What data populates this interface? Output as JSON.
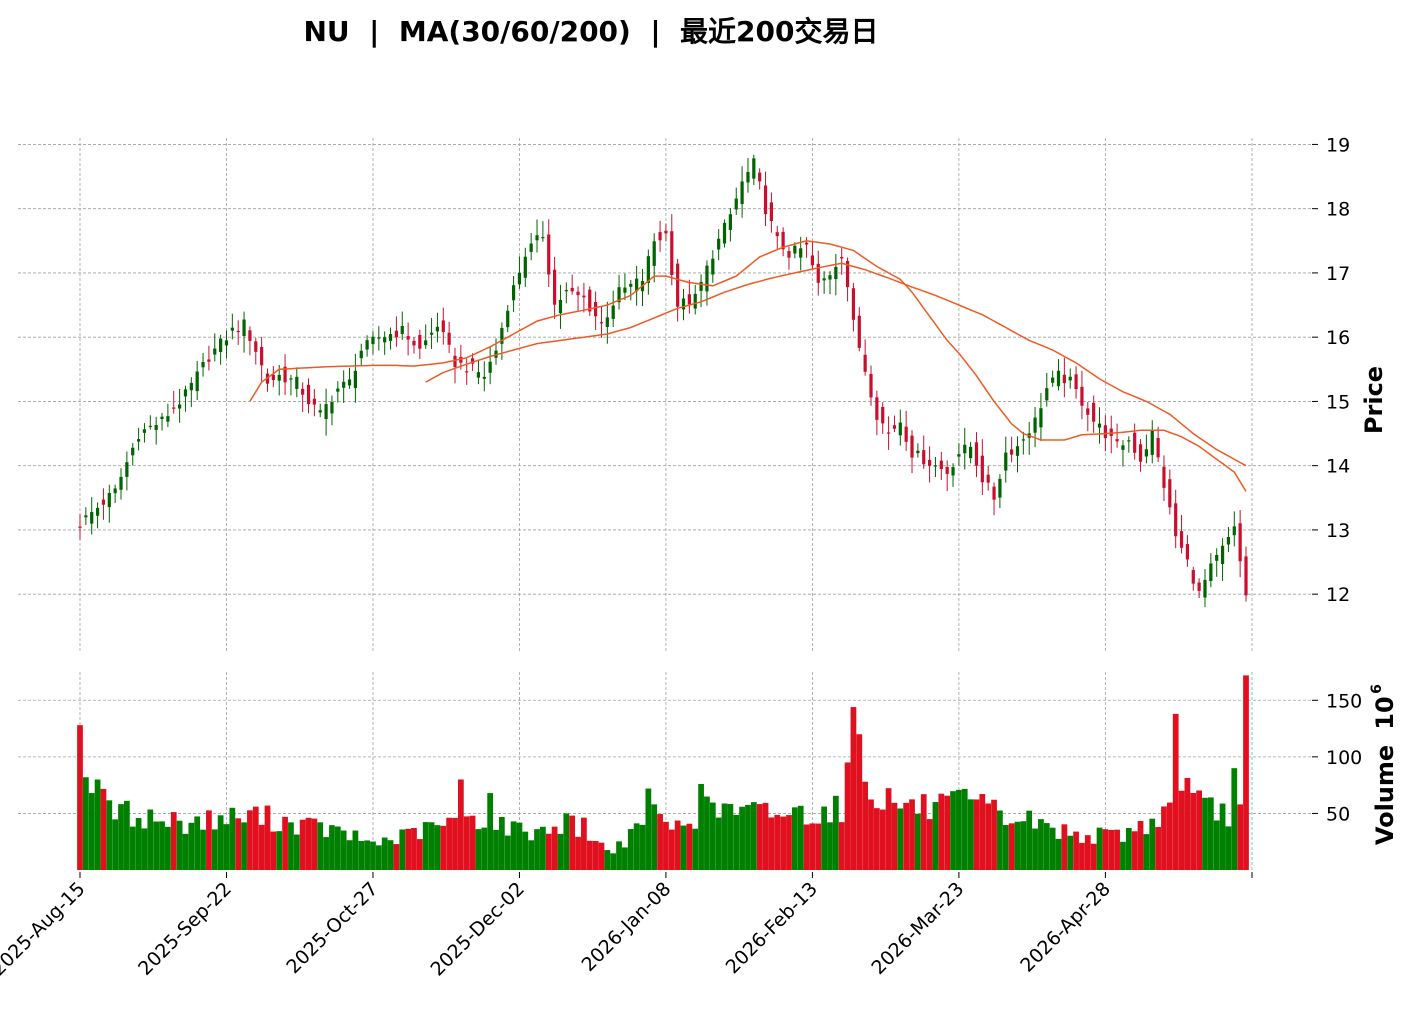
{
  "colors": {
    "up": "#006400",
    "down": "#c8102e",
    "ma": "#ee5a24",
    "vol_up": "#008000",
    "vol_down": "#e0101e"
  },
  "chart_data": {
    "type": "candlestick",
    "title": "NU  |  MA(30/60/200)  |  最近200交易日",
    "ylabel_price": "Price",
    "ylabel_volume": "Volume",
    "volume_exponent": "6",
    "volume_base": "10",
    "price_ylim": [
      11.1,
      19.1
    ],
    "price_ticks": [
      "12",
      "13",
      "14",
      "15",
      "16",
      "17",
      "18",
      "19"
    ],
    "volume_ylim": [
      0,
      175
    ],
    "volume_ticks": [
      "50",
      "100",
      "150"
    ],
    "x_ticks": [
      {
        "label": "2025-Aug-15",
        "index": 0
      },
      {
        "label": "2025-Sep-22",
        "index": 25
      },
      {
        "label": "2025-Oct-27",
        "index": 50
      },
      {
        "label": "2025-Dec-02",
        "index": 75
      },
      {
        "label": "2026-Jan-08",
        "index": 100
      },
      {
        "label": "2026-Feb-13",
        "index": 125
      },
      {
        "label": "2026-Mar-23",
        "index": 150
      },
      {
        "label": "2026-Apr-28",
        "index": 175
      }
    ],
    "n_bars": 200,
    "price_anchors": [
      [
        0,
        13.1
      ],
      [
        6,
        13.6
      ],
      [
        10,
        14.5
      ],
      [
        14,
        14.7
      ],
      [
        18,
        15.1
      ],
      [
        22,
        15.7
      ],
      [
        26,
        16.1
      ],
      [
        28,
        16.2
      ],
      [
        30,
        15.8
      ],
      [
        32,
        15.3
      ],
      [
        34,
        15.4
      ],
      [
        37,
        15.3
      ],
      [
        39,
        15.0
      ],
      [
        41,
        14.8
      ],
      [
        44,
        15.2
      ],
      [
        46,
        15.3
      ],
      [
        48,
        15.8
      ],
      [
        51,
        16.0
      ],
      [
        55,
        16.1
      ],
      [
        58,
        15.8
      ],
      [
        61,
        16.2
      ],
      [
        64,
        15.6
      ],
      [
        67,
        15.5
      ],
      [
        69,
        15.4
      ],
      [
        71,
        15.8
      ],
      [
        73,
        16.5
      ],
      [
        76,
        17.3
      ],
      [
        79,
        17.6
      ],
      [
        81,
        16.5
      ],
      [
        83,
        16.7
      ],
      [
        86,
        16.6
      ],
      [
        89,
        16.2
      ],
      [
        92,
        16.7
      ],
      [
        96,
        16.9
      ],
      [
        98,
        17.5
      ],
      [
        100,
        17.6
      ],
      [
        102,
        16.5
      ],
      [
        105,
        16.6
      ],
      [
        108,
        17.3
      ],
      [
        111,
        17.9
      ],
      [
        113,
        18.4
      ],
      [
        115,
        18.7
      ],
      [
        117,
        18.0
      ],
      [
        119,
        17.5
      ],
      [
        121,
        17.3
      ],
      [
        124,
        17.4
      ],
      [
        126,
        16.8
      ],
      [
        128,
        17.0
      ],
      [
        130,
        17.3
      ],
      [
        131,
        16.8
      ],
      [
        132,
        16.2
      ],
      [
        134,
        15.5
      ],
      [
        136,
        14.8
      ],
      [
        138,
        14.5
      ],
      [
        140,
        14.7
      ],
      [
        142,
        14.2
      ],
      [
        144,
        14.1
      ],
      [
        146,
        14.0
      ],
      [
        148,
        13.9
      ],
      [
        150,
        14.2
      ],
      [
        152,
        14.3
      ],
      [
        154,
        13.8
      ],
      [
        156,
        13.5
      ],
      [
        158,
        14.2
      ],
      [
        160,
        14.3
      ],
      [
        163,
        14.7
      ],
      [
        165,
        15.2
      ],
      [
        167,
        15.4
      ],
      [
        169,
        15.3
      ],
      [
        171,
        15.0
      ],
      [
        173,
        14.7
      ],
      [
        175,
        14.5
      ],
      [
        177,
        14.3
      ],
      [
        179,
        14.4
      ],
      [
        181,
        14.1
      ],
      [
        183,
        14.5
      ],
      [
        185,
        13.7
      ],
      [
        187,
        12.9
      ],
      [
        189,
        12.5
      ],
      [
        191,
        12.0
      ],
      [
        193,
        12.4
      ],
      [
        195,
        12.7
      ],
      [
        197,
        13.0
      ],
      [
        199,
        12.0
      ]
    ],
    "ma_anchors": {
      "MA30": [
        [
          29,
          15.0
        ],
        [
          31,
          15.3
        ],
        [
          34,
          15.5
        ],
        [
          38,
          15.52
        ],
        [
          42,
          15.54
        ],
        [
          46,
          15.55
        ],
        [
          50,
          15.56
        ],
        [
          54,
          15.56
        ],
        [
          57,
          15.55
        ],
        [
          62,
          15.6
        ],
        [
          66,
          15.68
        ],
        [
          70,
          15.85
        ],
        [
          74,
          16.05
        ],
        [
          78,
          16.25
        ],
        [
          82,
          16.35
        ],
        [
          86,
          16.42
        ],
        [
          90,
          16.5
        ],
        [
          94,
          16.65
        ],
        [
          98,
          16.95
        ],
        [
          100,
          16.95
        ],
        [
          104,
          16.85
        ],
        [
          108,
          16.8
        ],
        [
          112,
          16.95
        ],
        [
          116,
          17.25
        ],
        [
          120,
          17.4
        ],
        [
          124,
          17.5
        ],
        [
          128,
          17.45
        ],
        [
          132,
          17.35
        ],
        [
          136,
          17.1
        ],
        [
          140,
          16.9
        ],
        [
          142,
          16.7
        ],
        [
          144,
          16.45
        ],
        [
          146,
          16.2
        ],
        [
          148,
          15.95
        ],
        [
          150,
          15.75
        ],
        [
          153,
          15.4
        ],
        [
          156,
          15.0
        ],
        [
          159,
          14.65
        ],
        [
          161,
          14.5
        ],
        [
          164,
          14.4
        ],
        [
          168,
          14.4
        ],
        [
          171,
          14.48
        ],
        [
          175,
          14.5
        ],
        [
          178,
          14.52
        ],
        [
          181,
          14.55
        ],
        [
          185,
          14.55
        ],
        [
          188,
          14.45
        ],
        [
          191,
          14.3
        ],
        [
          194,
          14.1
        ],
        [
          197,
          13.9
        ],
        [
          199,
          13.6
        ]
      ],
      "MA60": [
        [
          59,
          15.3
        ],
        [
          62,
          15.45
        ],
        [
          66,
          15.58
        ],
        [
          70,
          15.7
        ],
        [
          74,
          15.8
        ],
        [
          78,
          15.9
        ],
        [
          82,
          15.95
        ],
        [
          86,
          16.0
        ],
        [
          90,
          16.05
        ],
        [
          94,
          16.15
        ],
        [
          98,
          16.3
        ],
        [
          102,
          16.45
        ],
        [
          106,
          16.55
        ],
        [
          110,
          16.7
        ],
        [
          114,
          16.82
        ],
        [
          118,
          16.92
        ],
        [
          122,
          17.0
        ],
        [
          126,
          17.08
        ],
        [
          130,
          17.15
        ],
        [
          134,
          17.05
        ],
        [
          138,
          16.92
        ],
        [
          142,
          16.78
        ],
        [
          146,
          16.65
        ],
        [
          150,
          16.5
        ],
        [
          154,
          16.35
        ],
        [
          158,
          16.15
        ],
        [
          162,
          15.95
        ],
        [
          166,
          15.8
        ],
        [
          170,
          15.6
        ],
        [
          174,
          15.35
        ],
        [
          178,
          15.15
        ],
        [
          182,
          15.0
        ],
        [
          186,
          14.8
        ],
        [
          190,
          14.5
        ],
        [
          194,
          14.25
        ],
        [
          199,
          14.0
        ]
      ]
    },
    "volume_anchors": [
      [
        0,
        78
      ],
      [
        3,
        62
      ],
      [
        6,
        52
      ],
      [
        10,
        48
      ],
      [
        14,
        44
      ],
      [
        18,
        42
      ],
      [
        22,
        44
      ],
      [
        26,
        46
      ],
      [
        30,
        48
      ],
      [
        34,
        44
      ],
      [
        38,
        40
      ],
      [
        42,
        36
      ],
      [
        46,
        30
      ],
      [
        50,
        24
      ],
      [
        54,
        28
      ],
      [
        58,
        34
      ],
      [
        62,
        40
      ],
      [
        66,
        48
      ],
      [
        70,
        44
      ],
      [
        74,
        36
      ],
      [
        78,
        34
      ],
      [
        82,
        40
      ],
      [
        86,
        38
      ],
      [
        90,
        16
      ],
      [
        94,
        30
      ],
      [
        98,
        42
      ],
      [
        102,
        38
      ],
      [
        106,
        52
      ],
      [
        110,
        54
      ],
      [
        114,
        50
      ],
      [
        118,
        52
      ],
      [
        122,
        50
      ],
      [
        126,
        52
      ],
      [
        130,
        56
      ],
      [
        132,
        100
      ],
      [
        134,
        76
      ],
      [
        138,
        62
      ],
      [
        142,
        56
      ],
      [
        146,
        54
      ],
      [
        150,
        58
      ],
      [
        154,
        56
      ],
      [
        158,
        46
      ],
      [
        162,
        44
      ],
      [
        166,
        36
      ],
      [
        170,
        32
      ],
      [
        174,
        30
      ],
      [
        178,
        32
      ],
      [
        182,
        40
      ],
      [
        186,
        54
      ],
      [
        188,
        90
      ],
      [
        190,
        60
      ],
      [
        194,
        50
      ],
      [
        197,
        52
      ],
      [
        199,
        95
      ]
    ],
    "volume_spikes": [
      [
        0,
        128
      ],
      [
        1,
        82
      ],
      [
        2,
        68
      ],
      [
        3,
        80
      ],
      [
        65,
        80
      ],
      [
        67,
        48
      ],
      [
        70,
        68
      ],
      [
        83,
        50
      ],
      [
        97,
        72
      ],
      [
        98,
        58
      ],
      [
        106,
        76
      ],
      [
        115,
        60
      ],
      [
        132,
        144
      ],
      [
        133,
        120
      ],
      [
        134,
        78
      ],
      [
        187,
        138
      ],
      [
        188,
        70
      ],
      [
        197,
        90
      ],
      [
        198,
        58
      ],
      [
        199,
        172
      ]
    ]
  }
}
